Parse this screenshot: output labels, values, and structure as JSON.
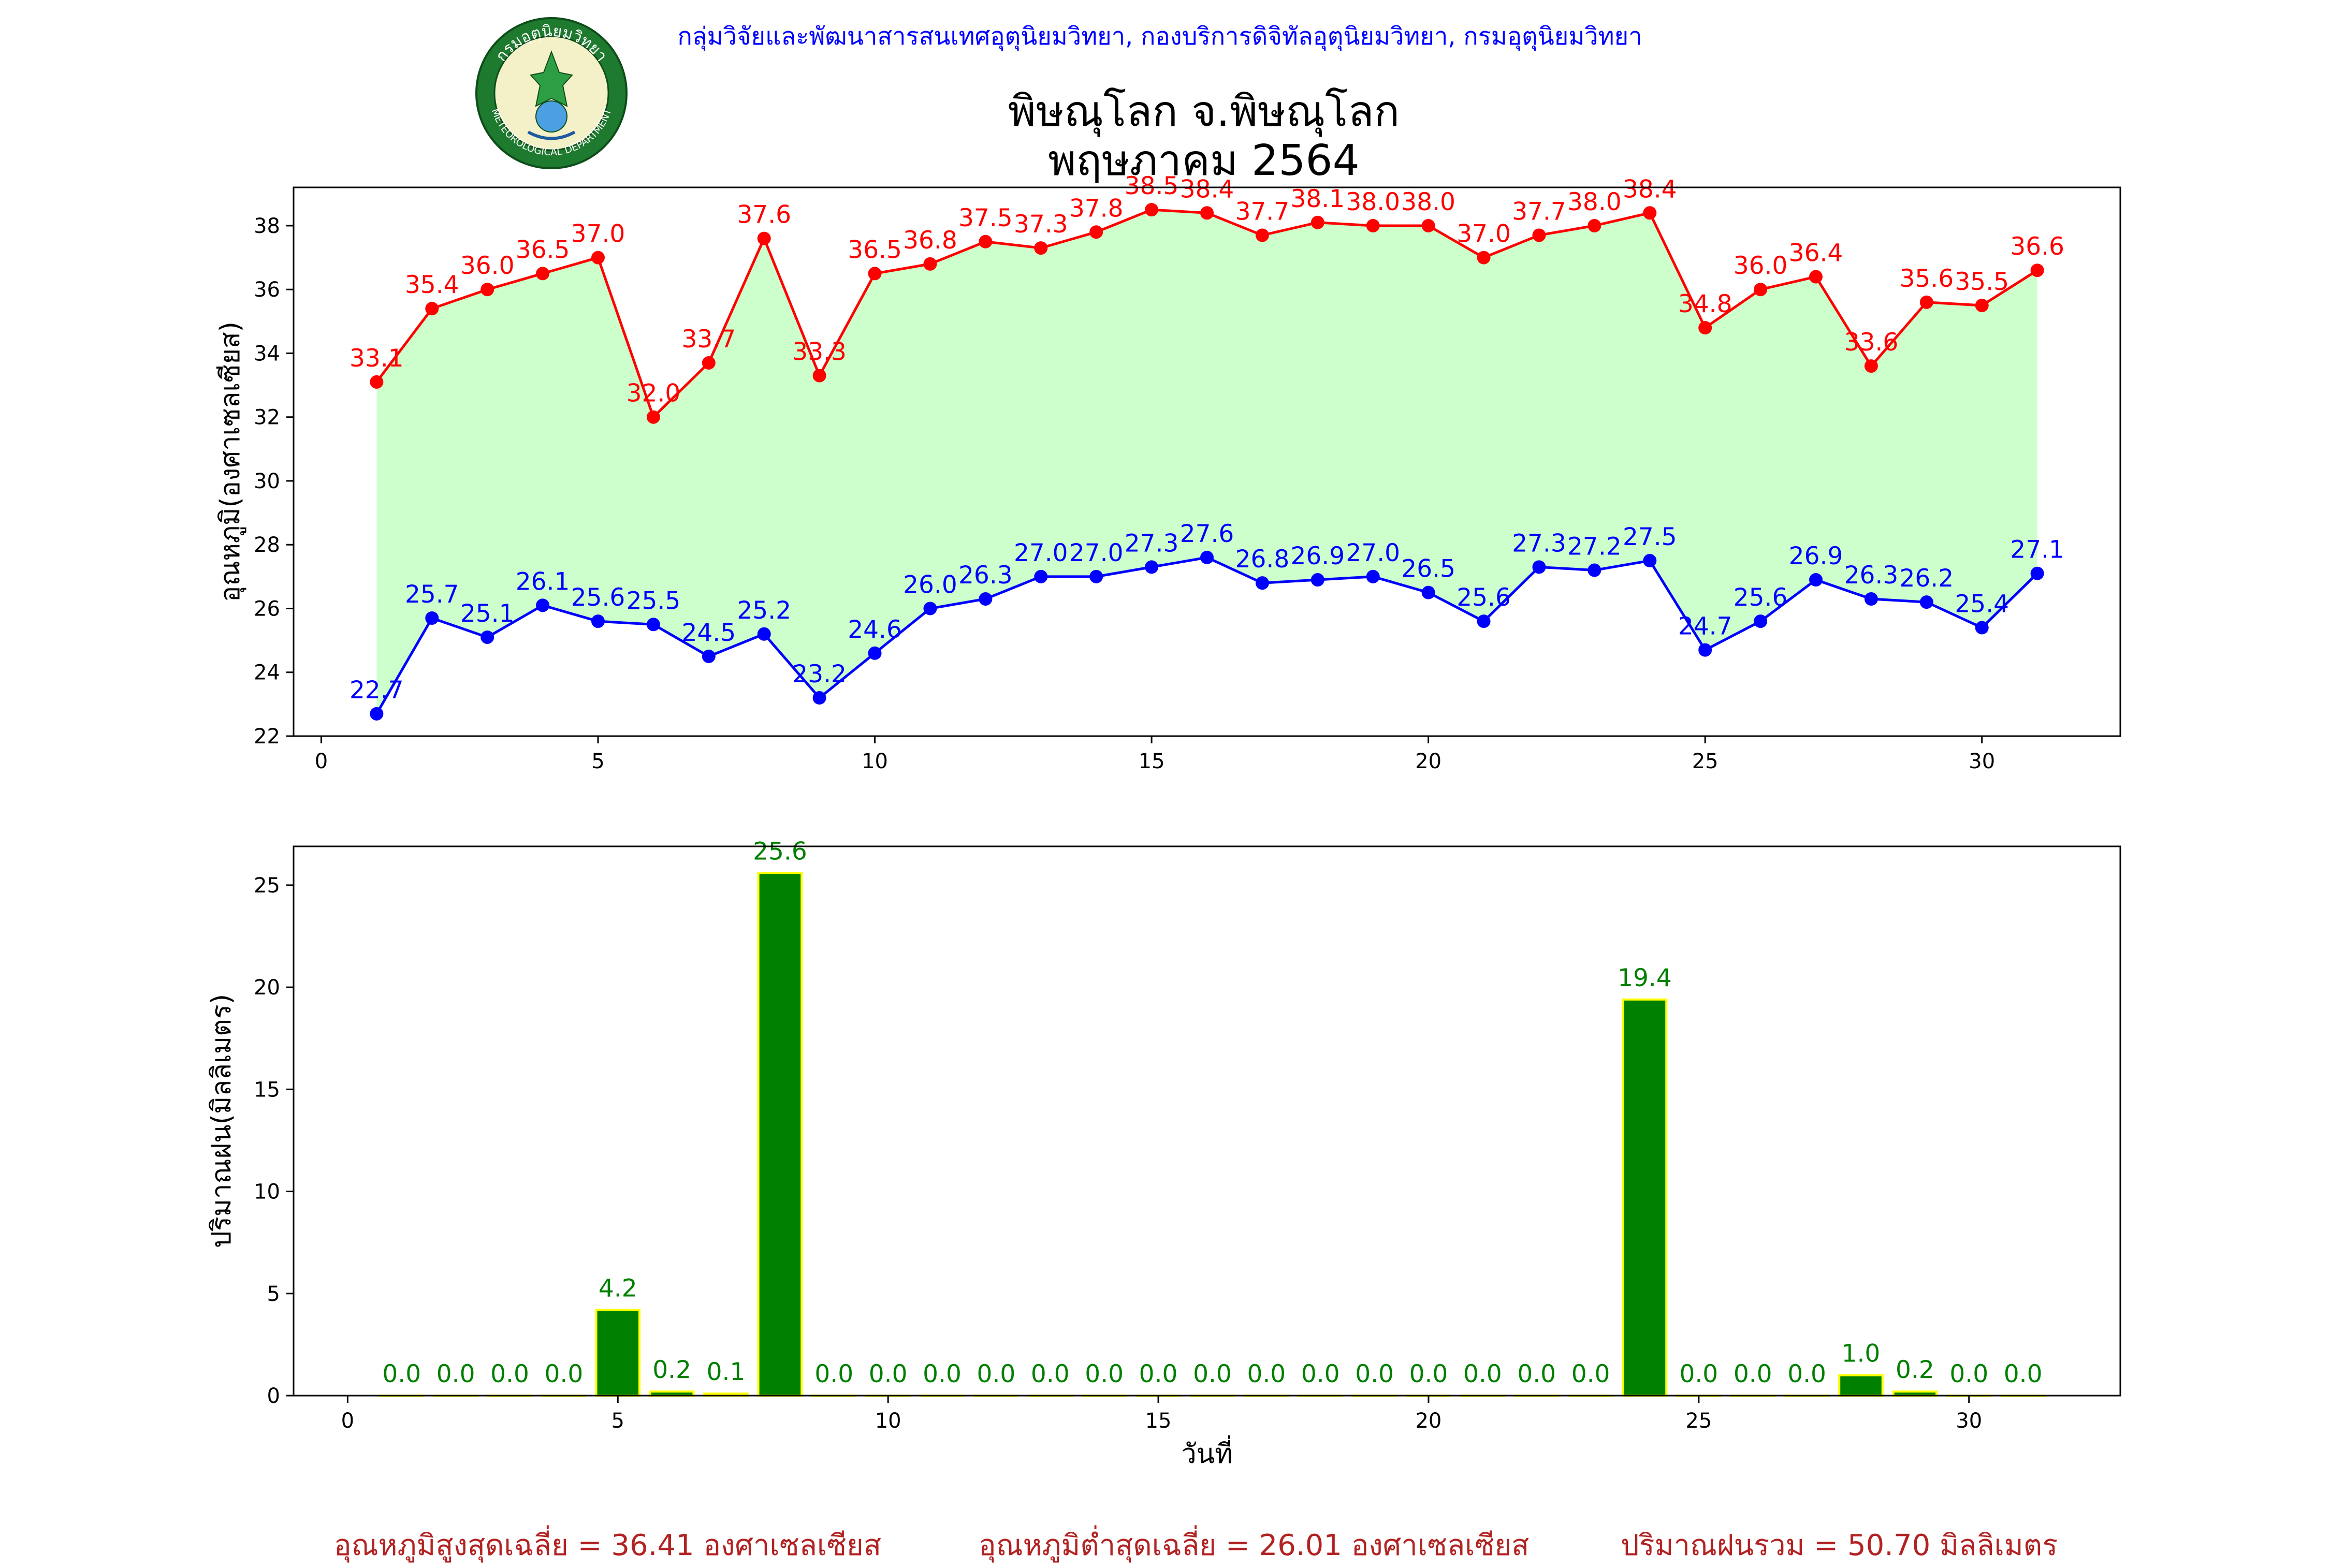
{
  "header": {
    "department_line": "กลุ่มวิจัยและพัฒนาสารสนเทศอุตุนิยมวิทยา, กองบริการดิจิทัลอุตุนิยมวิทยา, กรมอุตุนิยมวิทยา",
    "title_line1": "พิษณุโลก จ.พิษณุโลก",
    "title_line2": "พฤษภาคม 2564",
    "logo_text": "กรมอุตุนิยมวิทยา",
    "logo_text_en": "METEOROLOGICAL DEPARTMENT"
  },
  "summary": {
    "avg_max": "อุณหภูมิสูงสุดเฉลี่ย = 36.41 องศาเซลเซียส",
    "avg_min": "อุณหภูมิต่ำสุดเฉลี่ย = 26.01 องศาเซลเซียส",
    "total_rain": "ปริมาณฝนรวม = 50.70 มิลลิเมตร"
  },
  "colors": {
    "max_line": "#ff0000",
    "min_line": "#0000ff",
    "fill": "#ccffcc",
    "bar": "#008000",
    "bar_edge": "#ffff00",
    "bar_label": "#008000",
    "summary": "#b22222",
    "department": "#0000ff"
  },
  "chart_data": [
    {
      "type": "line",
      "ylabel": "อุณหภูมิ(องศาเซลเซียส)",
      "xlabel": "",
      "xlim": [
        -0.5,
        32.5
      ],
      "ylim": [
        22,
        39.2
      ],
      "xticks": [
        0,
        5,
        10,
        15,
        20,
        25,
        30
      ],
      "yticks": [
        22,
        24,
        26,
        28,
        30,
        32,
        34,
        36,
        38
      ],
      "fill_between": true,
      "x": [
        1,
        2,
        3,
        4,
        5,
        6,
        7,
        8,
        9,
        10,
        11,
        12,
        13,
        14,
        15,
        16,
        17,
        18,
        19,
        20,
        21,
        22,
        23,
        24,
        25,
        26,
        27,
        28,
        29,
        30,
        31
      ],
      "series": [
        {
          "role": "max",
          "values": [
            33.1,
            35.4,
            36.0,
            36.5,
            37.0,
            32.0,
            33.7,
            37.6,
            33.3,
            36.5,
            36.8,
            37.5,
            37.3,
            37.8,
            38.5,
            38.4,
            37.7,
            38.1,
            38.0,
            38.0,
            37.0,
            37.7,
            38.0,
            38.4,
            34.8,
            36.0,
            36.4,
            33.6,
            35.6,
            35.5,
            36.6
          ]
        },
        {
          "role": "min",
          "values": [
            22.7,
            25.7,
            25.1,
            26.1,
            25.6,
            25.5,
            24.5,
            25.2,
            23.2,
            24.6,
            26.0,
            26.3,
            27.0,
            27.0,
            27.3,
            27.6,
            26.8,
            26.9,
            27.0,
            26.5,
            25.6,
            27.3,
            27.2,
            27.5,
            24.7,
            25.6,
            26.9,
            26.3,
            26.2,
            25.4,
            27.1
          ]
        }
      ]
    },
    {
      "type": "bar",
      "ylabel": "ปริมาณฝน(มิลลิเมตร)",
      "xlabel": "วันที่",
      "xlim": [
        -1,
        32.8
      ],
      "ylim": [
        0,
        26.9
      ],
      "xticks": [
        0,
        5,
        10,
        15,
        20,
        25,
        30
      ],
      "yticks": [
        0,
        5,
        10,
        15,
        20,
        25
      ],
      "x": [
        1,
        2,
        3,
        4,
        5,
        6,
        7,
        8,
        9,
        10,
        11,
        12,
        13,
        14,
        15,
        16,
        17,
        18,
        19,
        20,
        21,
        22,
        23,
        24,
        25,
        26,
        27,
        28,
        29,
        30,
        31
      ],
      "values": [
        0.0,
        0.0,
        0.0,
        0.0,
        4.2,
        0.2,
        0.1,
        25.6,
        0.0,
        0.0,
        0.0,
        0.0,
        0.0,
        0.0,
        0.0,
        0.0,
        0.0,
        0.0,
        0.0,
        0.0,
        0.0,
        0.0,
        0.0,
        19.4,
        0.0,
        0.0,
        0.0,
        1.0,
        0.2,
        0.0,
        0.0
      ]
    }
  ]
}
